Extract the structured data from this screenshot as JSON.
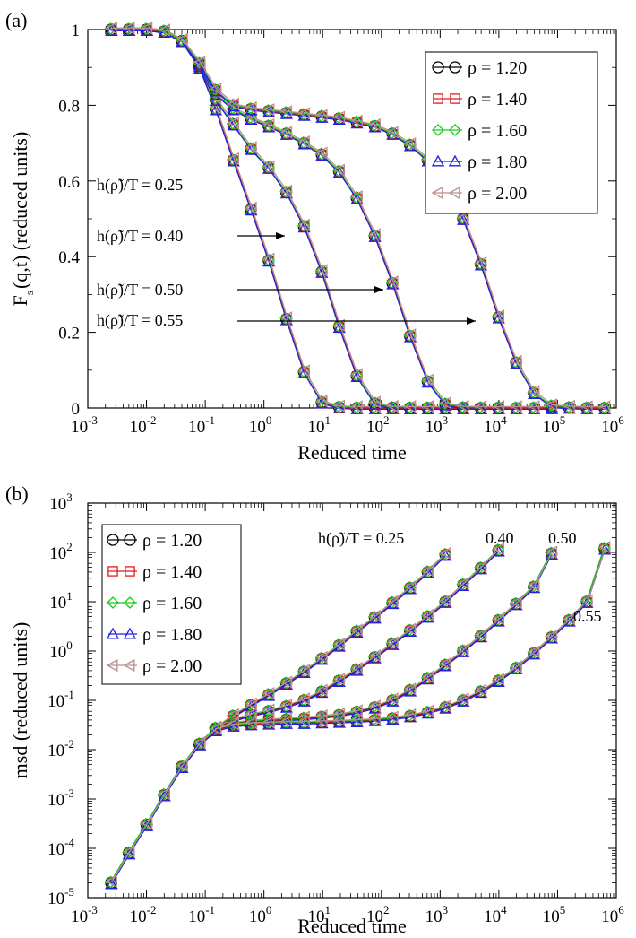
{
  "figure": {
    "panels": [
      {
        "label": "(a)",
        "xlabel": "Reduced time",
        "ylabel_main": "F",
        "ylabel_sub": "s",
        "ylabel_rest": "(q,t) (reduced units)",
        "yticks": [
          "0",
          "0.2",
          "0.4",
          "0.6",
          "0.8",
          "1"
        ],
        "xticks": [
          {
            "base": "10",
            "exp": "-3"
          },
          {
            "base": "10",
            "exp": "-2"
          },
          {
            "base": "10",
            "exp": "-1"
          },
          {
            "base": "10",
            "exp": "0"
          },
          {
            "base": "10",
            "exp": "1"
          },
          {
            "base": "10",
            "exp": "2"
          },
          {
            "base": "10",
            "exp": "3"
          },
          {
            "base": "10",
            "exp": "4"
          },
          {
            "base": "10",
            "exp": "5"
          },
          {
            "base": "10",
            "exp": "6"
          }
        ],
        "annotations": [
          "h(ρ̃)/T = 0.25",
          "h(ρ̃)/T = 0.40",
          "h(ρ̃)/T = 0.50",
          "h(ρ̃)/T = 0.55"
        ]
      },
      {
        "label": "(b)",
        "xlabel": "Reduced time",
        "ylabel": "msd (reduced units)",
        "yticks": [
          {
            "base": "10",
            "exp": "-5"
          },
          {
            "base": "10",
            "exp": "-4"
          },
          {
            "base": "10",
            "exp": "-3"
          },
          {
            "base": "10",
            "exp": "-2"
          },
          {
            "base": "10",
            "exp": "-1"
          },
          {
            "base": "10",
            "exp": "0"
          },
          {
            "base": "10",
            "exp": "1"
          },
          {
            "base": "10",
            "exp": "2"
          },
          {
            "base": "10",
            "exp": "3"
          }
        ],
        "xticks": [
          {
            "base": "10",
            "exp": "-3"
          },
          {
            "base": "10",
            "exp": "-2"
          },
          {
            "base": "10",
            "exp": "-1"
          },
          {
            "base": "10",
            "exp": "0"
          },
          {
            "base": "10",
            "exp": "1"
          },
          {
            "base": "10",
            "exp": "2"
          },
          {
            "base": "10",
            "exp": "3"
          },
          {
            "base": "10",
            "exp": "4"
          },
          {
            "base": "10",
            "exp": "5"
          },
          {
            "base": "10",
            "exp": "6"
          }
        ],
        "annotations": [
          "h(ρ̃)/T = 0.25",
          "0.40",
          "0.50",
          "0.55"
        ]
      }
    ],
    "legend": [
      {
        "label": "ρ = 1.20",
        "color": "#000000",
        "marker": "circle"
      },
      {
        "label": "ρ = 1.40",
        "color": "#e8181a",
        "marker": "square"
      },
      {
        "label": "ρ = 1.60",
        "color": "#16cc16",
        "marker": "diamond"
      },
      {
        "label": "ρ = 1.80",
        "color": "#1f1fe6",
        "marker": "triangle-up"
      },
      {
        "label": "ρ = 2.00",
        "color": "#bc8f8f",
        "marker": "triangle-left"
      }
    ]
  },
  "chart_data": [
    {
      "type": "line",
      "title": "",
      "xlabel": "Reduced time",
      "ylabel": "Fs(q,t) (reduced units)",
      "xscale": "log",
      "xlim": [
        0.001,
        1000000
      ],
      "ylim": [
        0,
        1
      ],
      "grid": false,
      "legend_position": "top-right",
      "series": [
        {
          "name": "ρ = 1.20",
          "color": "#000000",
          "marker": "circle"
        },
        {
          "name": "ρ = 1.40",
          "color": "#e8181a",
          "marker": "square"
        },
        {
          "name": "ρ = 1.60",
          "color": "#16cc16",
          "marker": "diamond"
        },
        {
          "name": "ρ = 1.80",
          "color": "#1f1fe6",
          "marker": "triangle-up"
        },
        {
          "name": "ρ = 2.00",
          "color": "#bc8f8f",
          "marker": "triangle-left"
        }
      ],
      "curve_groups": [
        {
          "h_over_T": "0.25",
          "x": [
            0.0025,
            0.005,
            0.01,
            0.02,
            0.04,
            0.08,
            0.15,
            0.3,
            0.6,
            1.2,
            2.4,
            4.8,
            9.6,
            19,
            38,
            77,
            154,
            307,
            614,
            1228
          ],
          "y": [
            1.0,
            1.0,
            1.0,
            0.995,
            0.97,
            0.9,
            0.79,
            0.655,
            0.525,
            0.39,
            0.235,
            0.095,
            0.015,
            0.002,
            0,
            0,
            0,
            0,
            0,
            0
          ]
        },
        {
          "h_over_T": "0.40",
          "x": [
            0.0025,
            0.005,
            0.01,
            0.02,
            0.04,
            0.08,
            0.15,
            0.3,
            0.6,
            1.2,
            2.4,
            4.8,
            9.6,
            19,
            38,
            77,
            154,
            307,
            614,
            1228,
            2457,
            4915,
            9830
          ],
          "y": [
            1.0,
            1.0,
            1.0,
            0.995,
            0.97,
            0.9,
            0.815,
            0.75,
            0.685,
            0.635,
            0.57,
            0.48,
            0.36,
            0.215,
            0.085,
            0.012,
            0.001,
            0,
            0,
            0,
            0,
            0,
            0
          ]
        },
        {
          "h_over_T": "0.50",
          "x": [
            0.0025,
            0.005,
            0.01,
            0.02,
            0.04,
            0.08,
            0.15,
            0.3,
            0.6,
            1.2,
            2.4,
            4.8,
            9.6,
            19,
            38,
            77,
            154,
            307,
            614,
            1228,
            2457,
            4915,
            9830,
            19660,
            39321,
            78643
          ],
          "y": [
            1.0,
            1.0,
            1.0,
            0.995,
            0.97,
            0.905,
            0.83,
            0.79,
            0.765,
            0.745,
            0.725,
            0.7,
            0.67,
            0.625,
            0.555,
            0.455,
            0.33,
            0.19,
            0.07,
            0.01,
            0.001,
            0,
            0,
            0,
            0,
            0
          ]
        },
        {
          "h_over_T": "0.55",
          "x": [
            0.0025,
            0.005,
            0.01,
            0.02,
            0.04,
            0.08,
            0.15,
            0.3,
            0.6,
            1.2,
            2.4,
            4.8,
            9.6,
            19,
            38,
            77,
            154,
            307,
            614,
            1228,
            2457,
            4915,
            9830,
            19660,
            39321,
            78643,
            157286,
            314572,
            629145
          ],
          "y": [
            1.0,
            1.0,
            1.0,
            0.995,
            0.97,
            0.91,
            0.84,
            0.8,
            0.79,
            0.785,
            0.78,
            0.775,
            0.77,
            0.765,
            0.755,
            0.745,
            0.725,
            0.695,
            0.655,
            0.59,
            0.5,
            0.38,
            0.24,
            0.12,
            0.04,
            0.005,
            0.001,
            0,
            0
          ]
        }
      ],
      "annotations": [
        "h(ρ̃)/T = 0.25",
        "h(ρ̃)/T = 0.40",
        "h(ρ̃)/T = 0.50",
        "h(ρ̃)/T = 0.55"
      ]
    },
    {
      "type": "line",
      "title": "",
      "xlabel": "Reduced time",
      "ylabel": "msd (reduced units)",
      "xscale": "log",
      "yscale": "log",
      "xlim": [
        0.001,
        1000000
      ],
      "ylim": [
        1e-05,
        1000
      ],
      "grid": false,
      "legend_position": "top-left",
      "curve_groups": [
        {
          "h_over_T": "0.25",
          "x": [
            0.0025,
            0.005,
            0.01,
            0.02,
            0.04,
            0.08,
            0.15,
            0.3,
            0.6,
            1.2,
            2.4,
            4.8,
            9.6,
            19,
            38,
            77,
            154,
            307,
            614,
            1228
          ],
          "y": [
            2e-05,
            8e-05,
            0.0003,
            0.0012,
            0.0045,
            0.013,
            0.027,
            0.048,
            0.08,
            0.13,
            0.22,
            0.38,
            0.7,
            1.3,
            2.5,
            4.8,
            9.5,
            19,
            40,
            90
          ]
        },
        {
          "h_over_T": "0.40",
          "x": [
            0.0025,
            0.005,
            0.01,
            0.02,
            0.04,
            0.08,
            0.15,
            0.3,
            0.6,
            1.2,
            2.4,
            4.8,
            9.6,
            19,
            38,
            77,
            154,
            307,
            614,
            1228,
            2457,
            4915,
            9830
          ],
          "y": [
            2e-05,
            8e-05,
            0.0003,
            0.0012,
            0.0045,
            0.013,
            0.027,
            0.04,
            0.05,
            0.06,
            0.075,
            0.1,
            0.15,
            0.25,
            0.42,
            0.75,
            1.4,
            2.6,
            5,
            10,
            22,
            48,
            110
          ]
        },
        {
          "h_over_T": "0.50",
          "x": [
            0.0025,
            0.005,
            0.01,
            0.02,
            0.04,
            0.08,
            0.15,
            0.3,
            0.6,
            1.2,
            2.4,
            4.8,
            9.6,
            19,
            38,
            77,
            154,
            307,
            614,
            1228,
            2457,
            4915,
            9830,
            19660,
            39321,
            78643
          ],
          "y": [
            2e-05,
            8e-05,
            0.0003,
            0.0012,
            0.0045,
            0.013,
            0.026,
            0.034,
            0.037,
            0.039,
            0.041,
            0.043,
            0.046,
            0.05,
            0.058,
            0.072,
            0.1,
            0.16,
            0.28,
            0.52,
            1.0,
            2.0,
            4.2,
            9,
            20,
            95
          ]
        },
        {
          "h_over_T": "0.55",
          "x": [
            0.0025,
            0.005,
            0.01,
            0.02,
            0.04,
            0.08,
            0.15,
            0.3,
            0.6,
            1.2,
            2.4,
            4.8,
            9.6,
            19,
            38,
            77,
            154,
            307,
            614,
            1228,
            2457,
            4915,
            9830,
            19660,
            39321,
            78643,
            157286,
            314572,
            629145
          ],
          "y": [
            2e-05,
            8e-05,
            0.0003,
            0.0012,
            0.0045,
            0.013,
            0.025,
            0.031,
            0.033,
            0.034,
            0.035,
            0.035,
            0.036,
            0.037,
            0.038,
            0.04,
            0.043,
            0.048,
            0.057,
            0.072,
            0.1,
            0.15,
            0.25,
            0.45,
            0.9,
            1.9,
            4.2,
            10,
            120
          ]
        }
      ],
      "annotations": [
        "h(ρ̃)/T = 0.25",
        "0.40",
        "0.50",
        "0.55"
      ]
    }
  ]
}
